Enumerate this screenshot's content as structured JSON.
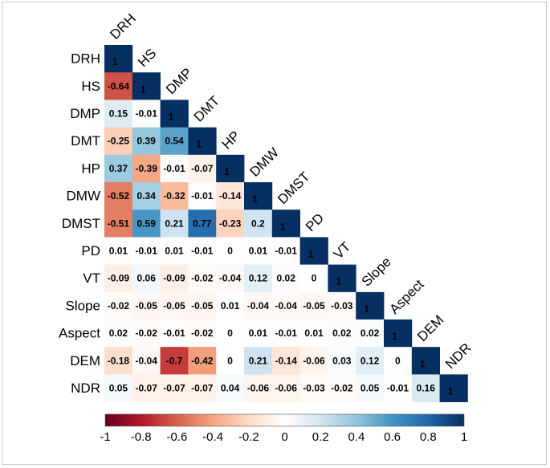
{
  "chart_data": {
    "type": "heatmap",
    "variables": [
      "DRH",
      "HS",
      "DMP",
      "DMT",
      "HP",
      "DMW",
      "DMST",
      "PD",
      "VT",
      "Slope",
      "Aspect",
      "DEM",
      "NDR"
    ],
    "matrix_lower": [
      [
        "1"
      ],
      [
        "-0.64",
        "1"
      ],
      [
        "0.15",
        "-0.01",
        "1"
      ],
      [
        "-0.25",
        "0.39",
        "0.54",
        "1"
      ],
      [
        "0.37",
        "-0.39",
        "-0.01",
        "-0.07",
        "1"
      ],
      [
        "-0.52",
        "0.34",
        "-0.32",
        "-0.01",
        "-0.14",
        "1"
      ],
      [
        "-0.51",
        "0.59",
        "0.21",
        "0.77",
        "-0.23",
        "0.2",
        "1"
      ],
      [
        "0.01",
        "-0.01",
        "0.01",
        "-0.01",
        "0",
        "0.01",
        "-0.01",
        "1"
      ],
      [
        "-0.09",
        "0.06",
        "-0.09",
        "-0.02",
        "-0.04",
        "0.12",
        "0.02",
        "0",
        "1"
      ],
      [
        "-0.02",
        "-0.05",
        "-0.05",
        "-0.05",
        "0.01",
        "-0.04",
        "-0.04",
        "-0.05",
        "-0.03",
        "1"
      ],
      [
        "0.02",
        "-0.02",
        "-0.01",
        "-0.02",
        "0",
        "0.01",
        "-0.01",
        "0.01",
        "0.02",
        "0.02",
        "1"
      ],
      [
        "-0.18",
        "-0.04",
        "-0.7",
        "-0.42",
        "0",
        "0.21",
        "-0.14",
        "-0.06",
        "0.03",
        "0.12",
        "0",
        "1"
      ],
      [
        "0.05",
        "-0.07",
        "-0.07",
        "-0.07",
        "0.04",
        "-0.06",
        "-0.06",
        "-0.03",
        "-0.02",
        "0.05",
        "-0.01",
        "0.16",
        "1"
      ]
    ],
    "colorbar": {
      "range": [
        -1,
        1
      ],
      "ticks": [
        "-1",
        "-0.8",
        "-0.6",
        "-0.4",
        "-0.2",
        "0",
        "0.2",
        "0.4",
        "0.6",
        "0.8",
        "1"
      ],
      "colors": [
        "#67001f",
        "#b2182b",
        "#d6604d",
        "#f4a582",
        "#fddbc7",
        "#ffffff",
        "#d1e5f0",
        "#92c5de",
        "#4393c3",
        "#2166ac",
        "#053061"
      ]
    }
  }
}
